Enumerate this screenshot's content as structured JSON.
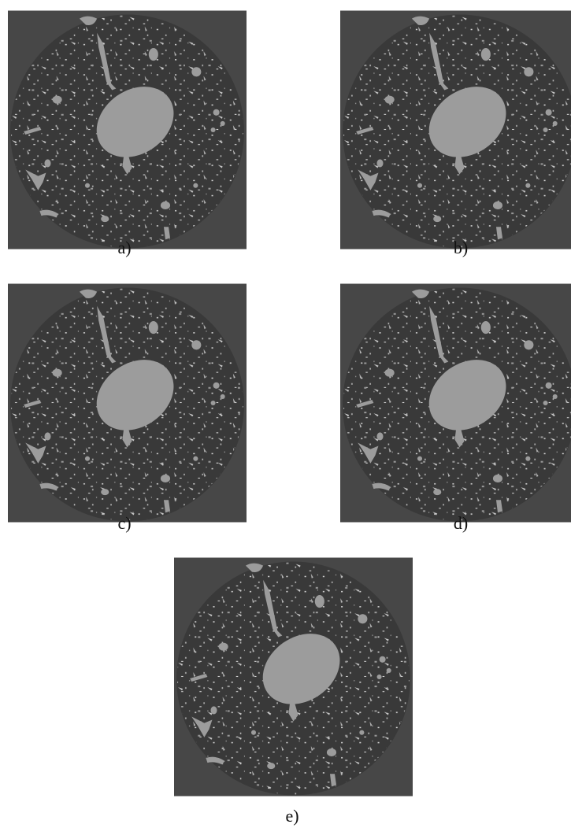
{
  "figure": {
    "panels": [
      {
        "label": "a)"
      },
      {
        "label": "b)"
      },
      {
        "label": "c)"
      },
      {
        "label": "d)"
      },
      {
        "label": "e)"
      }
    ]
  }
}
